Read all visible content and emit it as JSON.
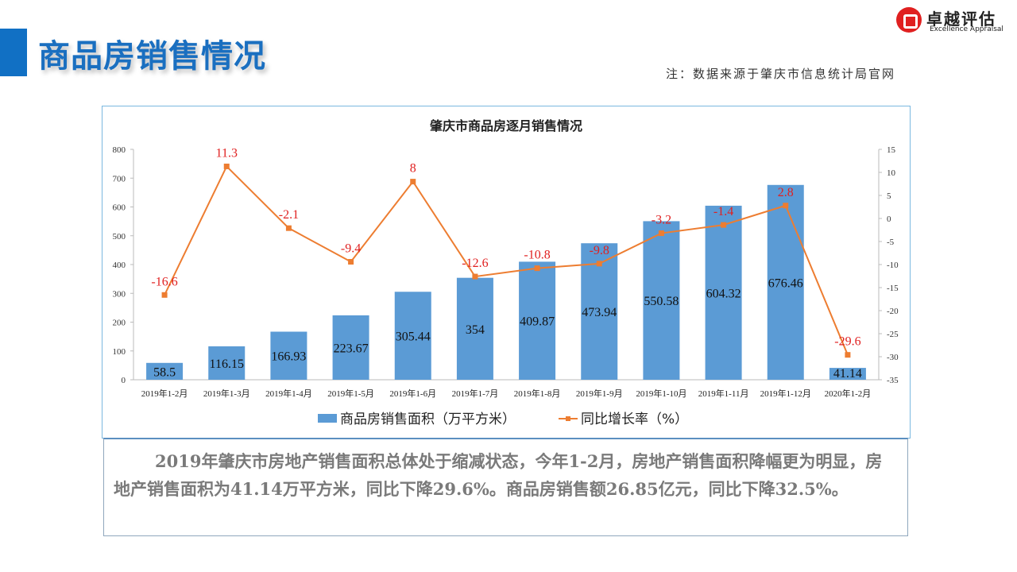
{
  "header": {
    "title": "商品房销售情况",
    "note": "注：数据来源于肇庆市信息统计局官网"
  },
  "logo": {
    "cn": "卓越评估",
    "en": "Excellence Appraisal"
  },
  "chart_data": {
    "type": "bar+line",
    "title": "肇庆市商品房逐月销售情况",
    "categories": [
      "2019年1-2月",
      "2019年1-3月",
      "2019年1-4月",
      "2019年1-5月",
      "2019年1-6月",
      "2019年1-7月",
      "2019年1-8月",
      "2019年1-9月",
      "2019年1-10月",
      "2019年1-11月",
      "2019年1-12月",
      "2020年1-2月"
    ],
    "series": [
      {
        "name": "商品房销售面积（万平方米）",
        "type": "bar",
        "axis": "left",
        "color": "#5b9bd5",
        "values": [
          58.5,
          116.15,
          166.93,
          223.67,
          305.44,
          354,
          409.87,
          473.94,
          550.58,
          604.32,
          676.46,
          41.14
        ]
      },
      {
        "name": "同比增长率（%）",
        "type": "line",
        "axis": "right",
        "color": "#ed7d31",
        "label_color": "#e02020",
        "values": [
          -16.6,
          11.3,
          -2.1,
          -9.4,
          8,
          -12.6,
          -10.8,
          -9.8,
          -3.2,
          -1.4,
          2.8,
          -29.6
        ]
      }
    ],
    "ylim_left": [
      0,
      800
    ],
    "yticks_left": [
      0,
      100,
      200,
      300,
      400,
      500,
      600,
      700,
      800
    ],
    "ylim_right": [
      -35,
      15
    ],
    "yticks_right": [
      15,
      10,
      5,
      0,
      -5,
      -10,
      -15,
      -20,
      -25,
      -30,
      -35
    ],
    "legend": "bottom",
    "grid": false
  },
  "summary": "2019年肇庆市房地产销售面积总体处于缩减状态，今年1-2月，房地产销售面积降幅更为明显，房地产销售面积为41.14万平方米，同比下降29.6%。商品房销售额26.85亿元，同比下降32.5%。"
}
